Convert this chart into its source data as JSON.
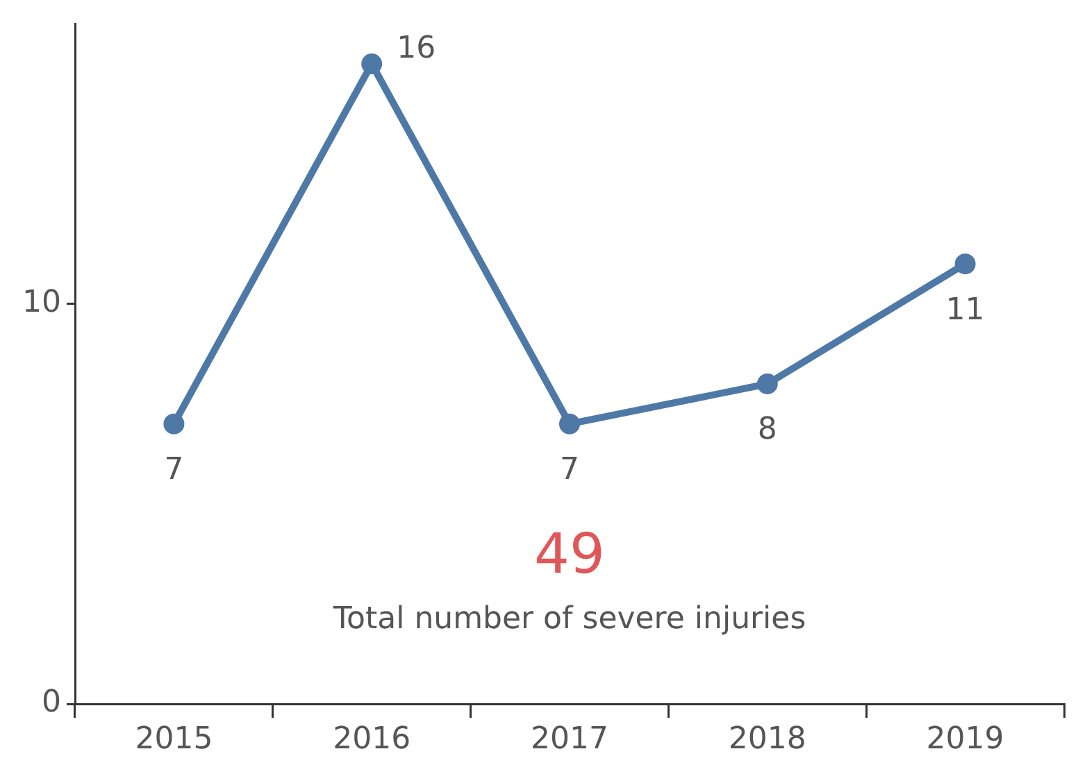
{
  "chart_data": {
    "type": "line",
    "categories": [
      "2015",
      "2016",
      "2017",
      "2018",
      "2019"
    ],
    "series": [
      {
        "color": "#4e79a7",
        "values": [
          7,
          16,
          7,
          8,
          11
        ]
      }
    ],
    "ylim": [
      0,
      17
    ],
    "yticks": [
      0,
      10
    ],
    "grid": false,
    "legend": false,
    "marker": "circle",
    "line_style": "solid",
    "data_labels": true,
    "annotations": [
      "49",
      "Total number of severe injuries"
    ]
  }
}
